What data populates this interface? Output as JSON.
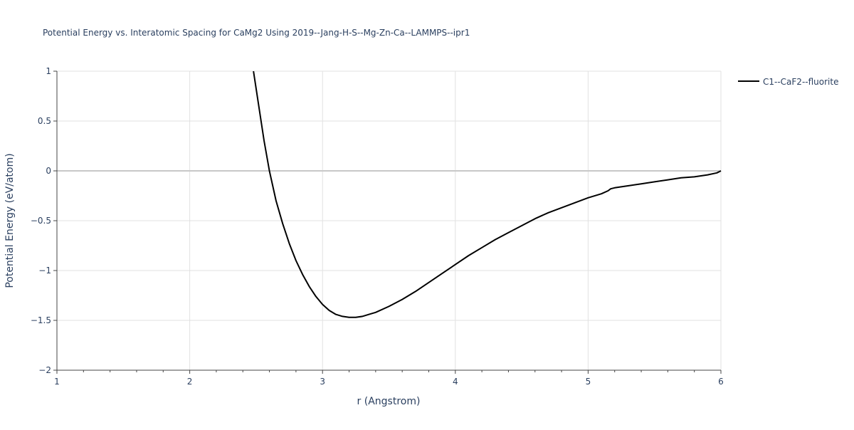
{
  "chart_data": {
    "type": "line",
    "title": "Potential Energy vs. Interatomic Spacing for CaMg2 Using 2019--Jang-H-S--Mg-Zn-Ca--LAMMPS--ipr1",
    "xlabel": "r (Angstrom)",
    "ylabel": "Potential Energy (eV/atom)",
    "xlim": [
      1,
      6
    ],
    "ylim": [
      -2,
      1
    ],
    "x_ticks": [
      "1",
      "2",
      "3",
      "4",
      "5",
      "6"
    ],
    "y_ticks": [
      "1",
      "0.5",
      "0",
      "−0.5",
      "−1",
      "−1.5",
      "−2"
    ],
    "x_tick_values": [
      1,
      2,
      3,
      4,
      5,
      6
    ],
    "y_tick_values": [
      1,
      0.5,
      0,
      -0.5,
      -1,
      -1.5,
      -2
    ],
    "x_minor_ticks": [
      1.2,
      1.4,
      1.6,
      1.8,
      2.2,
      2.4,
      2.6,
      2.8,
      3.2,
      3.4,
      3.6,
      3.8,
      4.2,
      4.4,
      4.6,
      4.8,
      5.2,
      5.4,
      5.6,
      5.8
    ],
    "grid": true,
    "legend_position": "top-right",
    "series": [
      {
        "name": "C1--CaF2--fluorite",
        "color": "#000000",
        "x": [
          2.48,
          2.52,
          2.56,
          2.6,
          2.65,
          2.7,
          2.75,
          2.8,
          2.85,
          2.9,
          2.95,
          3.0,
          3.05,
          3.1,
          3.15,
          3.2,
          3.25,
          3.3,
          3.35,
          3.4,
          3.5,
          3.6,
          3.7,
          3.8,
          3.9,
          4.0,
          4.1,
          4.2,
          4.3,
          4.4,
          4.5,
          4.6,
          4.7,
          4.8,
          4.9,
          5.0,
          5.1,
          5.15,
          5.17,
          5.2,
          5.3,
          5.4,
          5.5,
          5.6,
          5.7,
          5.8,
          5.9,
          5.97,
          6.0
        ],
        "y": [
          1.0,
          0.65,
          0.3,
          0.0,
          -0.3,
          -0.53,
          -0.73,
          -0.9,
          -1.04,
          -1.16,
          -1.26,
          -1.34,
          -1.4,
          -1.44,
          -1.46,
          -1.47,
          -1.47,
          -1.46,
          -1.44,
          -1.42,
          -1.36,
          -1.29,
          -1.21,
          -1.12,
          -1.03,
          -0.94,
          -0.85,
          -0.77,
          -0.69,
          -0.62,
          -0.55,
          -0.48,
          -0.42,
          -0.37,
          -0.32,
          -0.27,
          -0.23,
          -0.2,
          -0.18,
          -0.17,
          -0.15,
          -0.13,
          -0.11,
          -0.09,
          -0.07,
          -0.06,
          -0.04,
          -0.02,
          0.0
        ]
      }
    ]
  }
}
